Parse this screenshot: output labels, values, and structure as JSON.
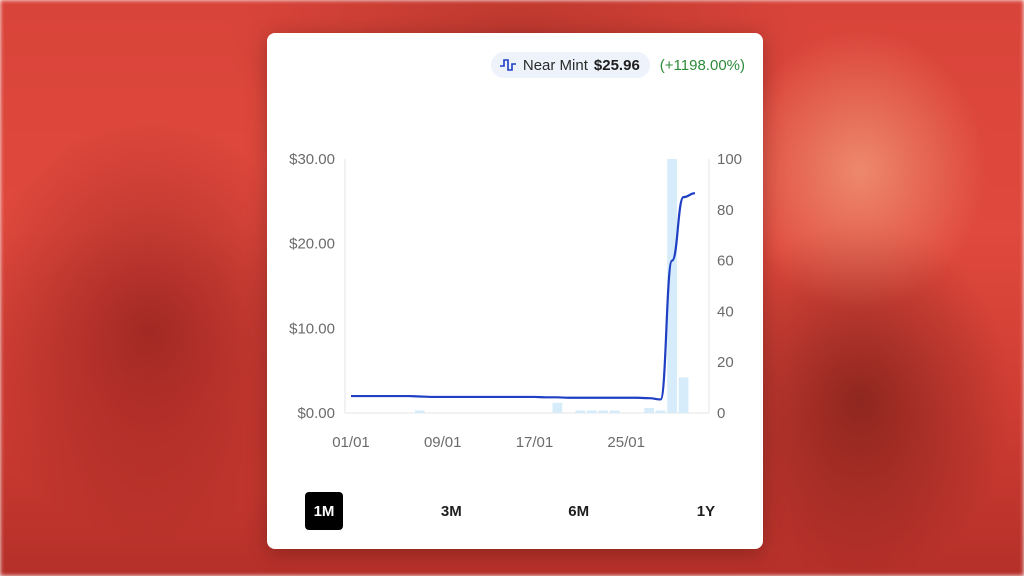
{
  "legend": {
    "label": "Near Mint",
    "price": "$25.96",
    "change": "(+1198.00%)",
    "icon": "step-line-icon",
    "change_color": "#2e8b3a"
  },
  "range_buttons": [
    {
      "label": "1M",
      "active": true
    },
    {
      "label": "3M",
      "active": false
    },
    {
      "label": "6M",
      "active": false
    },
    {
      "label": "1Y",
      "active": false
    }
  ],
  "chart_data": {
    "type": "line",
    "x_tick_labels": [
      "01/01",
      "09/01",
      "17/01",
      "25/01"
    ],
    "y_left": {
      "ticks": [
        "$0.00",
        "$10.00",
        "$20.00",
        "$30.00"
      ],
      "range": [
        0,
        30
      ]
    },
    "y_right": {
      "ticks": [
        "0",
        "20",
        "40",
        "60",
        "80",
        "100"
      ],
      "range": [
        0,
        100
      ]
    },
    "series": [
      {
        "name": "Near Mint",
        "axis": "left",
        "color": "#1f3fc4",
        "x": [
          "01/01",
          "02/01",
          "03/01",
          "04/01",
          "05/01",
          "06/01",
          "07/01",
          "08/01",
          "09/01",
          "10/01",
          "11/01",
          "12/01",
          "13/01",
          "14/01",
          "15/01",
          "16/01",
          "17/01",
          "18/01",
          "19/01",
          "20/01",
          "21/01",
          "22/01",
          "23/01",
          "24/01",
          "25/01",
          "26/01",
          "27/01",
          "28/01",
          "29/01",
          "30/01",
          "31/01"
        ],
        "values": [
          2.0,
          2.0,
          2.0,
          2.0,
          2.0,
          2.0,
          1.95,
          1.9,
          1.9,
          1.9,
          1.9,
          1.9,
          1.9,
          1.9,
          1.9,
          1.9,
          1.9,
          1.85,
          1.85,
          1.8,
          1.8,
          1.8,
          1.8,
          1.8,
          1.8,
          1.8,
          1.75,
          1.6,
          18.0,
          25.5,
          25.96
        ]
      },
      {
        "name": "Volume",
        "axis": "right",
        "type": "bar",
        "color": "#d6ecfb",
        "x": [
          "01/01",
          "02/01",
          "03/01",
          "04/01",
          "05/01",
          "06/01",
          "07/01",
          "08/01",
          "09/01",
          "10/01",
          "11/01",
          "12/01",
          "13/01",
          "14/01",
          "15/01",
          "16/01",
          "17/01",
          "18/01",
          "19/01",
          "20/01",
          "21/01",
          "22/01",
          "23/01",
          "24/01",
          "25/01",
          "26/01",
          "27/01",
          "28/01",
          "29/01",
          "30/01",
          "31/01"
        ],
        "values": [
          0,
          0,
          0,
          0,
          0,
          0,
          1,
          0,
          0,
          0,
          0,
          0,
          0,
          0,
          0,
          0,
          0,
          0,
          4,
          0,
          1,
          1,
          1,
          1,
          0,
          0,
          2,
          1,
          100,
          14,
          0
        ]
      }
    ]
  }
}
